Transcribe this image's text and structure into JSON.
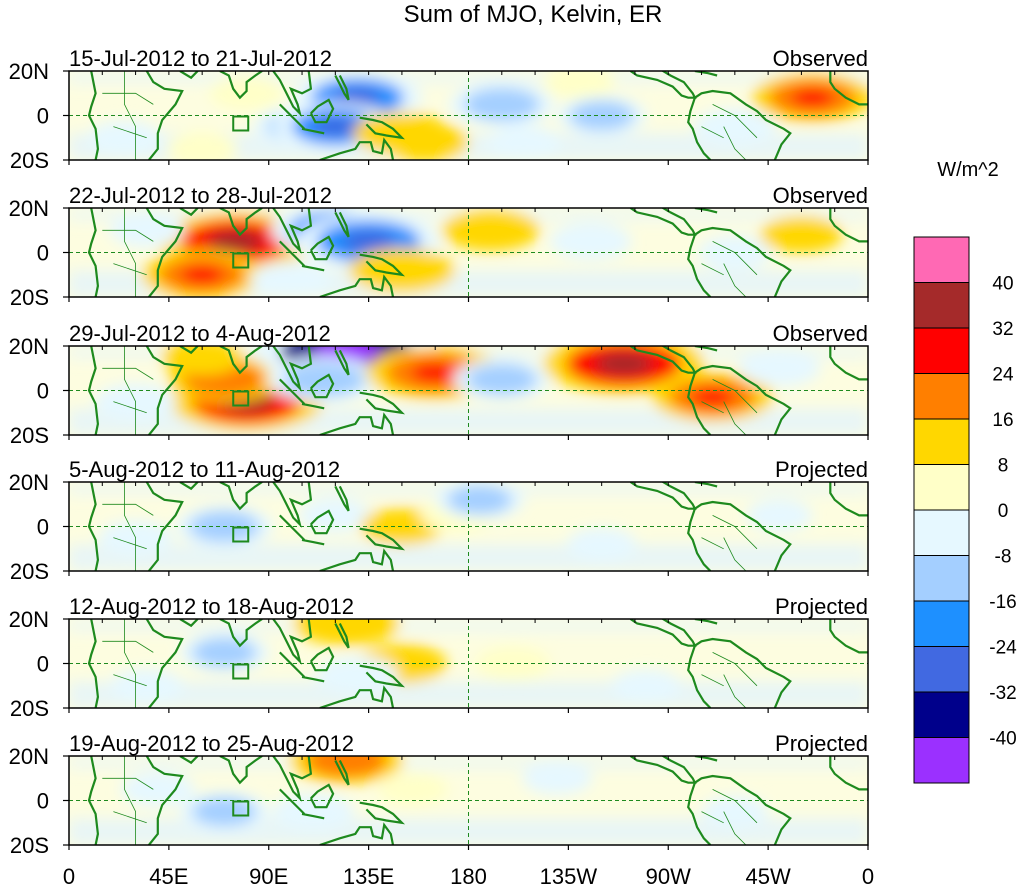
{
  "chart_data": {
    "type": "heatmap",
    "title": "Sum of MJO, Kelvin, ER",
    "units": "W/m^2",
    "x_ticks": [
      "0",
      "45E",
      "90E",
      "135E",
      "180",
      "135W",
      "90W",
      "45W",
      "0"
    ],
    "y_ticks": [
      "20N",
      "0",
      "20S"
    ],
    "xlim": [
      0,
      360
    ],
    "ylim": [
      -20,
      20
    ],
    "colorbar": {
      "labels": [
        "40",
        "32",
        "24",
        "16",
        "8",
        "0",
        "-8",
        "-16",
        "-24",
        "-32",
        "-40"
      ],
      "colors": [
        "#ff69b4",
        "#a52a2a",
        "#ff0000",
        "#ff7f00",
        "#ffd700",
        "#ffffc8",
        "#e6f8ff",
        "#a4cfff",
        "#1e90ff",
        "#4169e1",
        "#00008b",
        "#9b30ff"
      ]
    },
    "panels": [
      {
        "date_range": "15-Jul-2012 to 21-Jul-2012",
        "status": "Observed",
        "blobs": [
          {
            "lon": 25,
            "lat": -10,
            "v": -6
          },
          {
            "lon": 80,
            "lat": 10,
            "v": 6
          },
          {
            "lon": 105,
            "lat": -5,
            "v": -12
          },
          {
            "lon": 130,
            "lat": 8,
            "v": -20
          },
          {
            "lon": 120,
            "lat": -5,
            "v": -18
          },
          {
            "lon": 150,
            "lat": -8,
            "v": 12
          },
          {
            "lon": 160,
            "lat": -12,
            "v": 10
          },
          {
            "lon": 195,
            "lat": 5,
            "v": -14
          },
          {
            "lon": 230,
            "lat": 15,
            "v": 5
          },
          {
            "lon": 240,
            "lat": 0,
            "v": -10
          },
          {
            "lon": 300,
            "lat": -5,
            "v": -8
          },
          {
            "lon": 335,
            "lat": 8,
            "v": 18
          },
          {
            "lon": 60,
            "lat": -15,
            "v": 5
          },
          {
            "lon": 205,
            "lat": -12,
            "v": -6
          }
        ]
      },
      {
        "date_range": "22-Jul-2012 to 28-Jul-2012",
        "status": "Observed",
        "blobs": [
          {
            "lon": 75,
            "lat": 5,
            "v": 26
          },
          {
            "lon": 60,
            "lat": -10,
            "v": 18
          },
          {
            "lon": 120,
            "lat": 10,
            "v": -20
          },
          {
            "lon": 135,
            "lat": 5,
            "v": -24
          },
          {
            "lon": 150,
            "lat": -8,
            "v": 14
          },
          {
            "lon": 190,
            "lat": 10,
            "v": 12
          },
          {
            "lon": 235,
            "lat": 5,
            "v": -8
          },
          {
            "lon": 300,
            "lat": 0,
            "v": -6
          },
          {
            "lon": 330,
            "lat": 8,
            "v": 8
          },
          {
            "lon": 35,
            "lat": 10,
            "v": -6
          },
          {
            "lon": 100,
            "lat": -12,
            "v": -8
          }
        ]
      },
      {
        "date_range": "29-Jul-2012 to 4-Aug-2012",
        "status": "Observed",
        "blobs": [
          {
            "lon": 80,
            "lat": -5,
            "v": 26
          },
          {
            "lon": 70,
            "lat": 5,
            "v": 16
          },
          {
            "lon": 125,
            "lat": 18,
            "v": -34
          },
          {
            "lon": 115,
            "lat": 5,
            "v": -16
          },
          {
            "lon": 165,
            "lat": 8,
            "v": 22
          },
          {
            "lon": 195,
            "lat": 5,
            "v": -12
          },
          {
            "lon": 250,
            "lat": 12,
            "v": 28
          },
          {
            "lon": 290,
            "lat": -3,
            "v": 18
          },
          {
            "lon": 320,
            "lat": 10,
            "v": -8
          },
          {
            "lon": 30,
            "lat": -5,
            "v": -8
          },
          {
            "lon": 60,
            "lat": 15,
            "v": 8
          }
        ]
      },
      {
        "date_range": "5-Aug-2012 to 11-Aug-2012",
        "status": "Projected",
        "blobs": [
          {
            "lon": 70,
            "lat": 0,
            "v": -12
          },
          {
            "lon": 120,
            "lat": 5,
            "v": -6
          },
          {
            "lon": 150,
            "lat": 0,
            "v": 8
          },
          {
            "lon": 175,
            "lat": 5,
            "v": 6
          },
          {
            "lon": 185,
            "lat": 12,
            "v": -10
          },
          {
            "lon": 30,
            "lat": -5,
            "v": -6
          },
          {
            "lon": 240,
            "lat": -8,
            "v": -5
          },
          {
            "lon": 320,
            "lat": 5,
            "v": -4
          }
        ]
      },
      {
        "date_range": "12-Aug-2012 to 18-Aug-2012",
        "status": "Projected",
        "blobs": [
          {
            "lon": 70,
            "lat": 5,
            "v": -10
          },
          {
            "lon": 125,
            "lat": 18,
            "v": 14
          },
          {
            "lon": 150,
            "lat": 0,
            "v": 10
          },
          {
            "lon": 130,
            "lat": -5,
            "v": -8
          },
          {
            "lon": 200,
            "lat": 0,
            "v": 6
          },
          {
            "lon": 35,
            "lat": -10,
            "v": -6
          },
          {
            "lon": 260,
            "lat": -10,
            "v": -5
          }
        ]
      },
      {
        "date_range": "19-Aug-2012 to 25-Aug-2012",
        "status": "Projected",
        "blobs": [
          {
            "lon": 125,
            "lat": 18,
            "v": 16
          },
          {
            "lon": 110,
            "lat": -5,
            "v": -8
          },
          {
            "lon": 70,
            "lat": -5,
            "v": -10
          },
          {
            "lon": 155,
            "lat": 5,
            "v": 5
          },
          {
            "lon": 220,
            "lat": 10,
            "v": -5
          },
          {
            "lon": 40,
            "lat": 5,
            "v": -6
          },
          {
            "lon": 300,
            "lat": -5,
            "v": -4
          }
        ]
      }
    ]
  }
}
